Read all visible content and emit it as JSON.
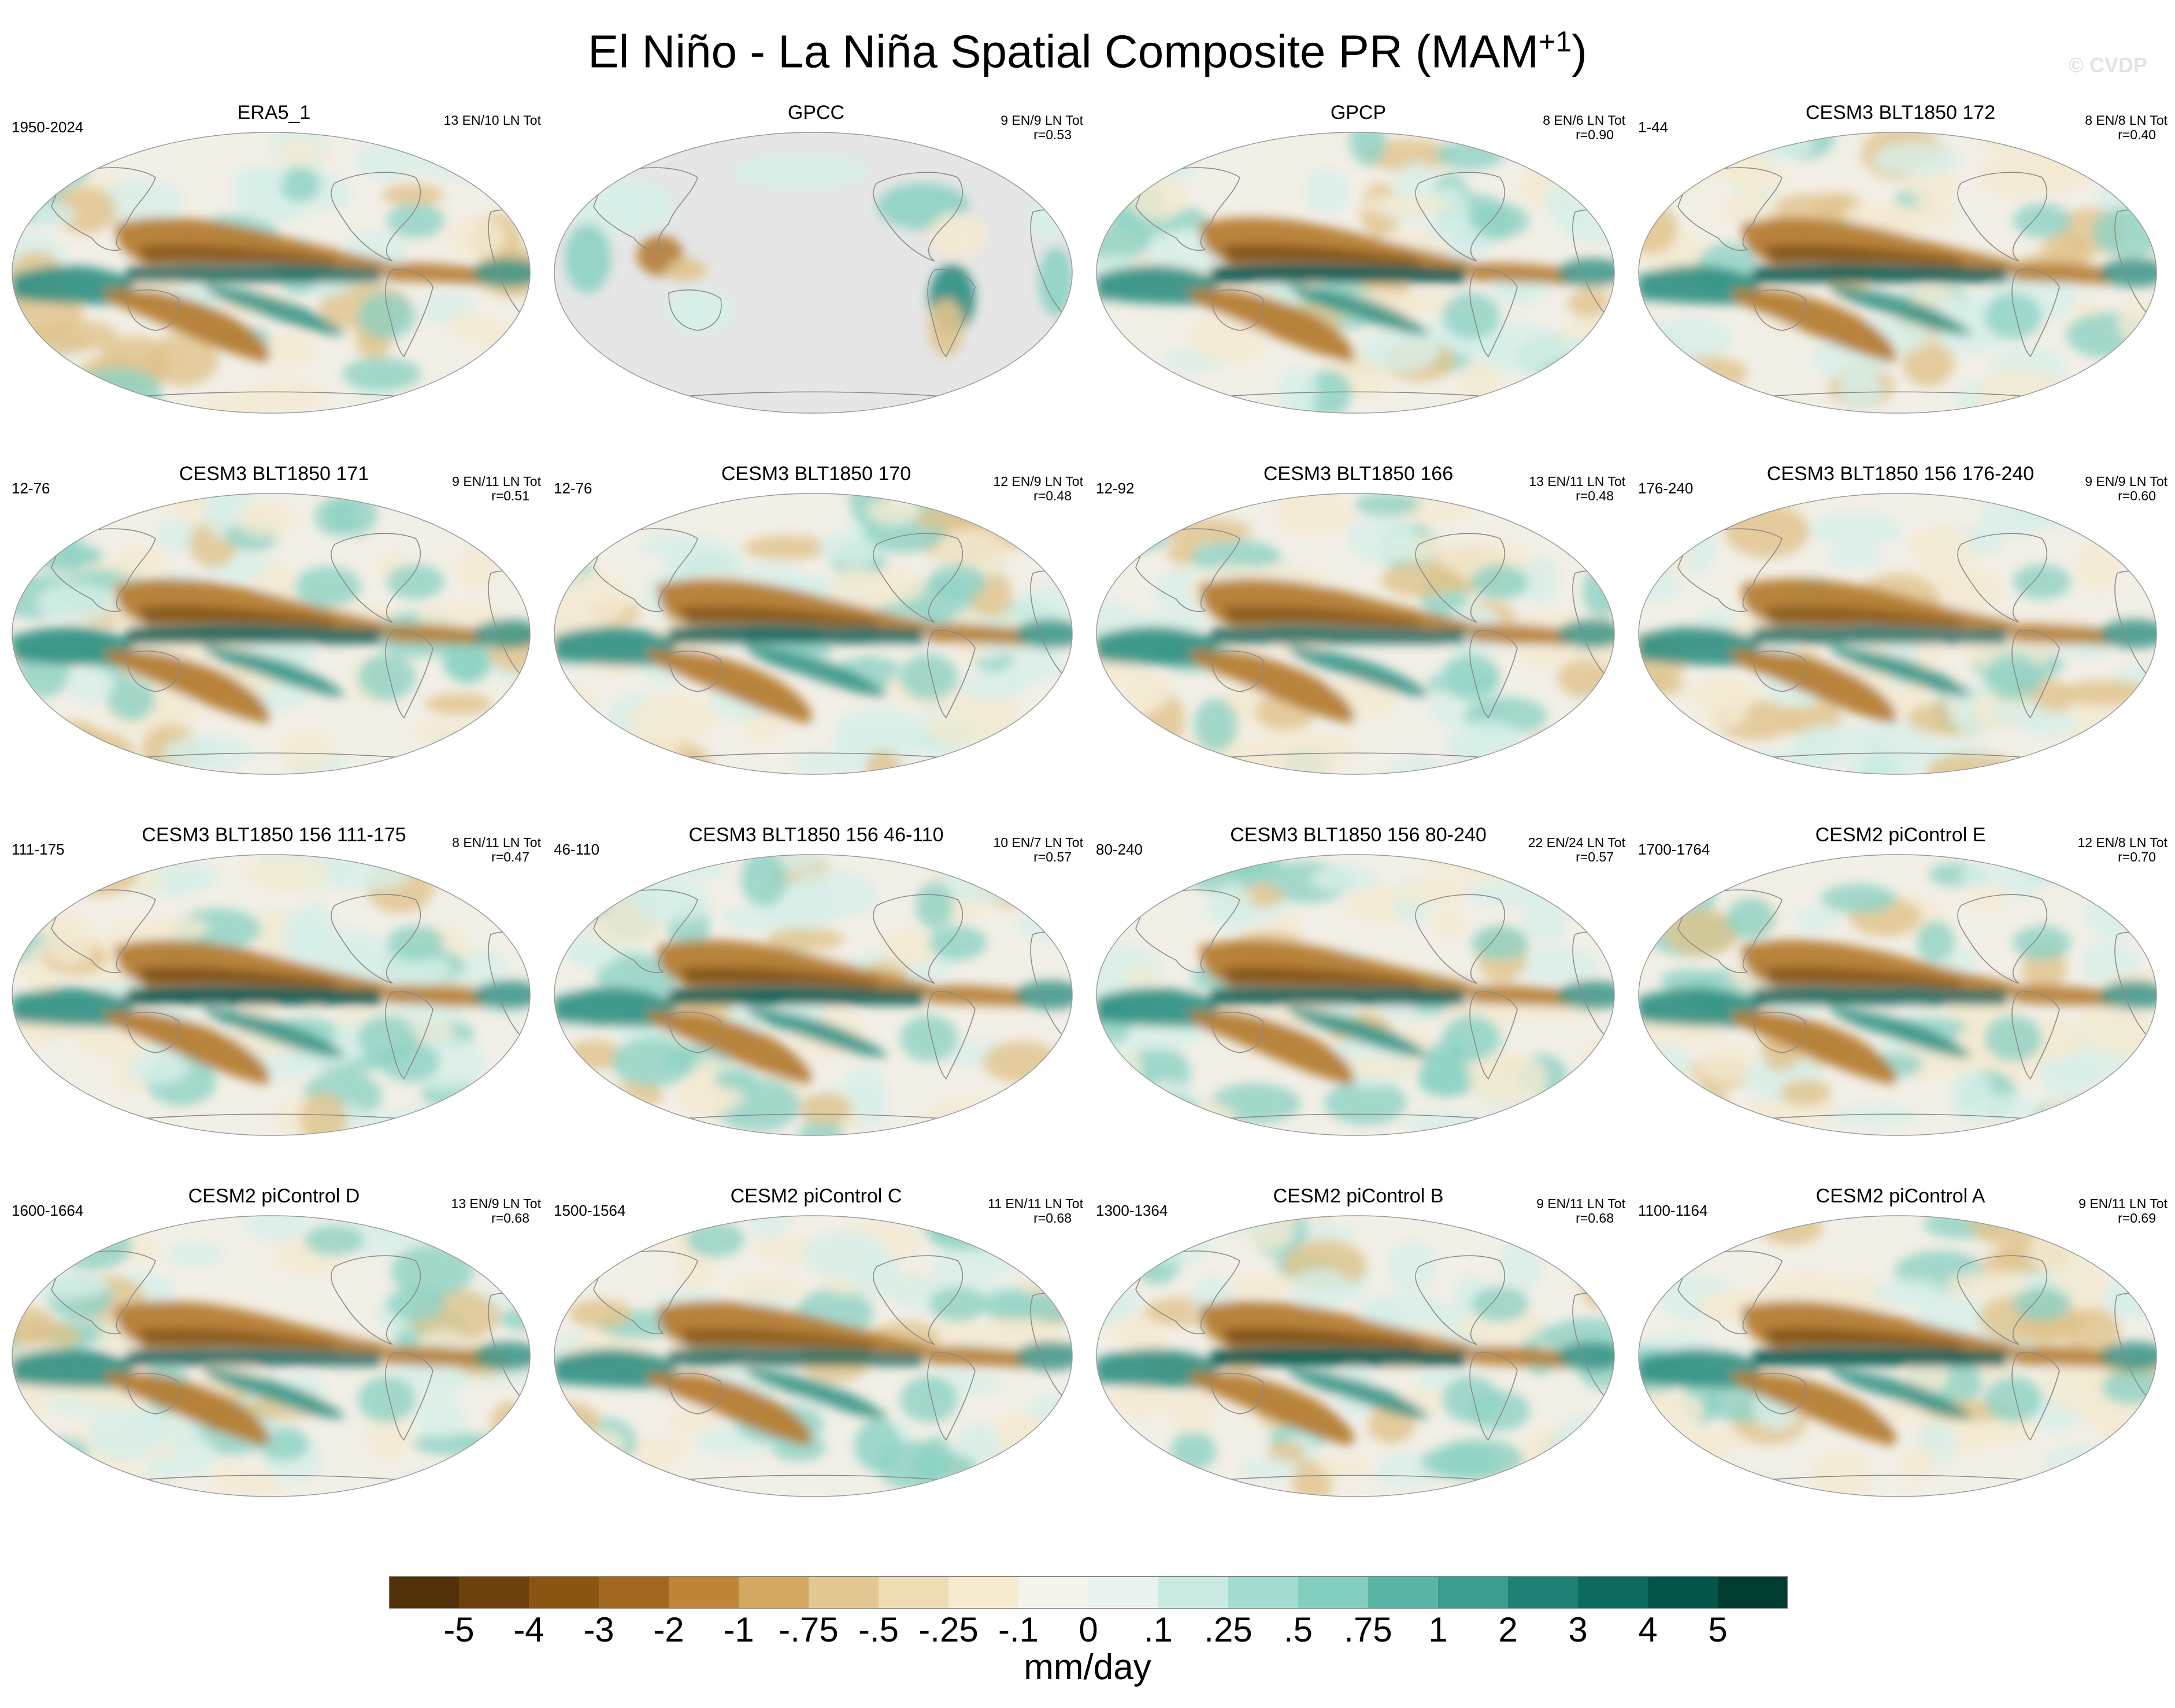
{
  "title": "El Niño - La Niña Spatial Composite PR (MAM",
  "title_superscript": "+1",
  "title_close": ")",
  "watermark": "© CVDP",
  "panels": [
    {
      "title": "ERA5_1",
      "years": "1950-2024",
      "count": "13 EN/10 LN Tot",
      "corr": "",
      "mask": false,
      "variant": 0
    },
    {
      "title": "GPCC",
      "years": "",
      "count": "9 EN/9 LN Tot",
      "corr": "r=0.53",
      "mask": true,
      "variant": 1
    },
    {
      "title": "GPCP",
      "years": "",
      "count": "8 EN/6 LN Tot",
      "corr": "r=0.90",
      "mask": false,
      "variant": 2
    },
    {
      "title": "CESM3 BLT1850 172",
      "years": "1-44",
      "count": "8 EN/8 LN Tot",
      "corr": "r=0.40",
      "mask": false,
      "variant": 3
    },
    {
      "title": "CESM3 BLT1850 171",
      "years": "12-76",
      "count": "9 EN/11 LN Tot",
      "corr": "r=0.51",
      "mask": false,
      "variant": 4
    },
    {
      "title": "CESM3 BLT1850 170",
      "years": "12-76",
      "count": "12 EN/9 LN Tot",
      "corr": "r=0.48",
      "mask": false,
      "variant": 5
    },
    {
      "title": "CESM3 BLT1850 166",
      "years": "12-92",
      "count": "13 EN/11 LN Tot",
      "corr": "r=0.48",
      "mask": false,
      "variant": 6
    },
    {
      "title": "CESM3 BLT1850 156 176-240",
      "years": "176-240",
      "count": "9 EN/9 LN Tot",
      "corr": "r=0.60",
      "mask": false,
      "variant": 7
    },
    {
      "title": "CESM3 BLT1850 156 111-175",
      "years": "111-175",
      "count": "8 EN/11 LN Tot",
      "corr": "r=0.47",
      "mask": false,
      "variant": 8
    },
    {
      "title": "CESM3 BLT1850 156 46-110",
      "years": "46-110",
      "count": "10 EN/7 LN Tot",
      "corr": "r=0.57",
      "mask": false,
      "variant": 9
    },
    {
      "title": "CESM3 BLT1850 156 80-240",
      "years": "80-240",
      "count": "22 EN/24 LN Tot",
      "corr": "r=0.57",
      "mask": false,
      "variant": 10
    },
    {
      "title": "CESM2 piControl E",
      "years": "1700-1764",
      "count": "12 EN/8 LN Tot",
      "corr": "r=0.70",
      "mask": false,
      "variant": 11
    },
    {
      "title": "CESM2 piControl D",
      "years": "1600-1664",
      "count": "13 EN/9 LN Tot",
      "corr": "r=0.68",
      "mask": false,
      "variant": 12
    },
    {
      "title": "CESM2 piControl C",
      "years": "1500-1564",
      "count": "11 EN/11 LN Tot",
      "corr": "r=0.68",
      "mask": false,
      "variant": 13
    },
    {
      "title": "CESM2 piControl B",
      "years": "1300-1364",
      "count": "9 EN/11 LN Tot",
      "corr": "r=0.68",
      "mask": false,
      "variant": 14
    },
    {
      "title": "CESM2 piControl A",
      "years": "1100-1164",
      "count": "9 EN/11 LN Tot",
      "corr": "r=0.69",
      "mask": false,
      "variant": 15
    }
  ],
  "colorbar": {
    "units": "mm/day",
    "ticks": [
      "-5",
      "-4",
      "-3",
      "-2",
      "-1",
      "-.75",
      "-.5",
      "-.25",
      "-.1",
      "0",
      ".1",
      ".25",
      ".5",
      ".75",
      "1",
      "2",
      "3",
      "4",
      "5"
    ],
    "colors": [
      "#523008",
      "#6d410c",
      "#8a5512",
      "#a2681f",
      "#bf8638",
      "#d3a862",
      "#e2c793",
      "#eedcb5",
      "#f6ebcf",
      "#f5f3ed",
      "#eaf2f0",
      "#c8eae2",
      "#a4dcd0",
      "#82cfc0",
      "#5ab5a4",
      "#3a9d8f",
      "#1f8075",
      "#0d6a5f",
      "#04544a",
      "#003c30"
    ]
  }
}
